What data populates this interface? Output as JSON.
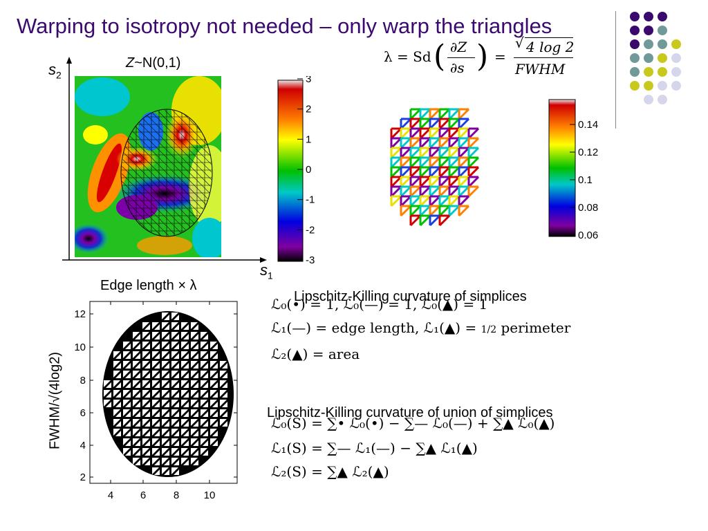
{
  "slide": {
    "title": "Warping to isotropy not needed – only warp the triangles",
    "accent_color": "#3b0a6e"
  },
  "field_panel": {
    "title_italic": "Z",
    "title_rest": "~N(0,1)",
    "y_axis_label": "s",
    "y_axis_sub": "2",
    "x_axis_label": "s",
    "x_axis_sub": "1",
    "colorbar_ticks": [
      "3",
      "2",
      "1",
      "0",
      "-1",
      "-2",
      "-3"
    ]
  },
  "lambda_formula": {
    "lhs": "λ = Sd",
    "num": "∂Z",
    "den": "∂s",
    "eq": "=",
    "sqrt_arg": "4 log 2",
    "den2": "FWHM"
  },
  "lambda_colorbar": {
    "ticks": [
      "0.14",
      "0.12",
      "0.1",
      "0.08",
      "0.06"
    ]
  },
  "edge_plot": {
    "title": "Edge length × λ",
    "ylabel": "FWHM/√(4log2)",
    "x_ticks": [
      "4",
      "6",
      "8",
      "10"
    ],
    "y_ticks": [
      "12",
      "10",
      "8",
      "6",
      "4",
      "2"
    ]
  },
  "lk_simplices": {
    "heading": "Lipschitz-Killing curvature of simplices",
    "line1": "ℒ₀(•) = 1,  ℒ₀(—) = 1,  ℒ₀(▲) = 1",
    "line2_a": "ℒ₁(—) = edge length,  ℒ₁(▲) = ",
    "line2_frac": "1/2",
    "line2_b": " perimeter",
    "line3": "ℒ₂(▲) = area"
  },
  "lk_union": {
    "heading": "Lipschitz-Killing curvature of union of simplices",
    "line1": "ℒ₀(S) = ∑• ℒ₀(•) − ∑— ℒ₀(—) + ∑▲ ℒ₀(▲)",
    "line2": "ℒ₁(S) = ∑— ℒ₁(—) − ∑▲ ℒ₁(▲)",
    "line3": "ℒ₂(S) = ∑▲ ℒ₂(▲)"
  },
  "decor_dots": {
    "colors": [
      "#3b0a6e",
      "#6f9a98",
      "#c9c81c",
      "#d6d6ea"
    ]
  }
}
